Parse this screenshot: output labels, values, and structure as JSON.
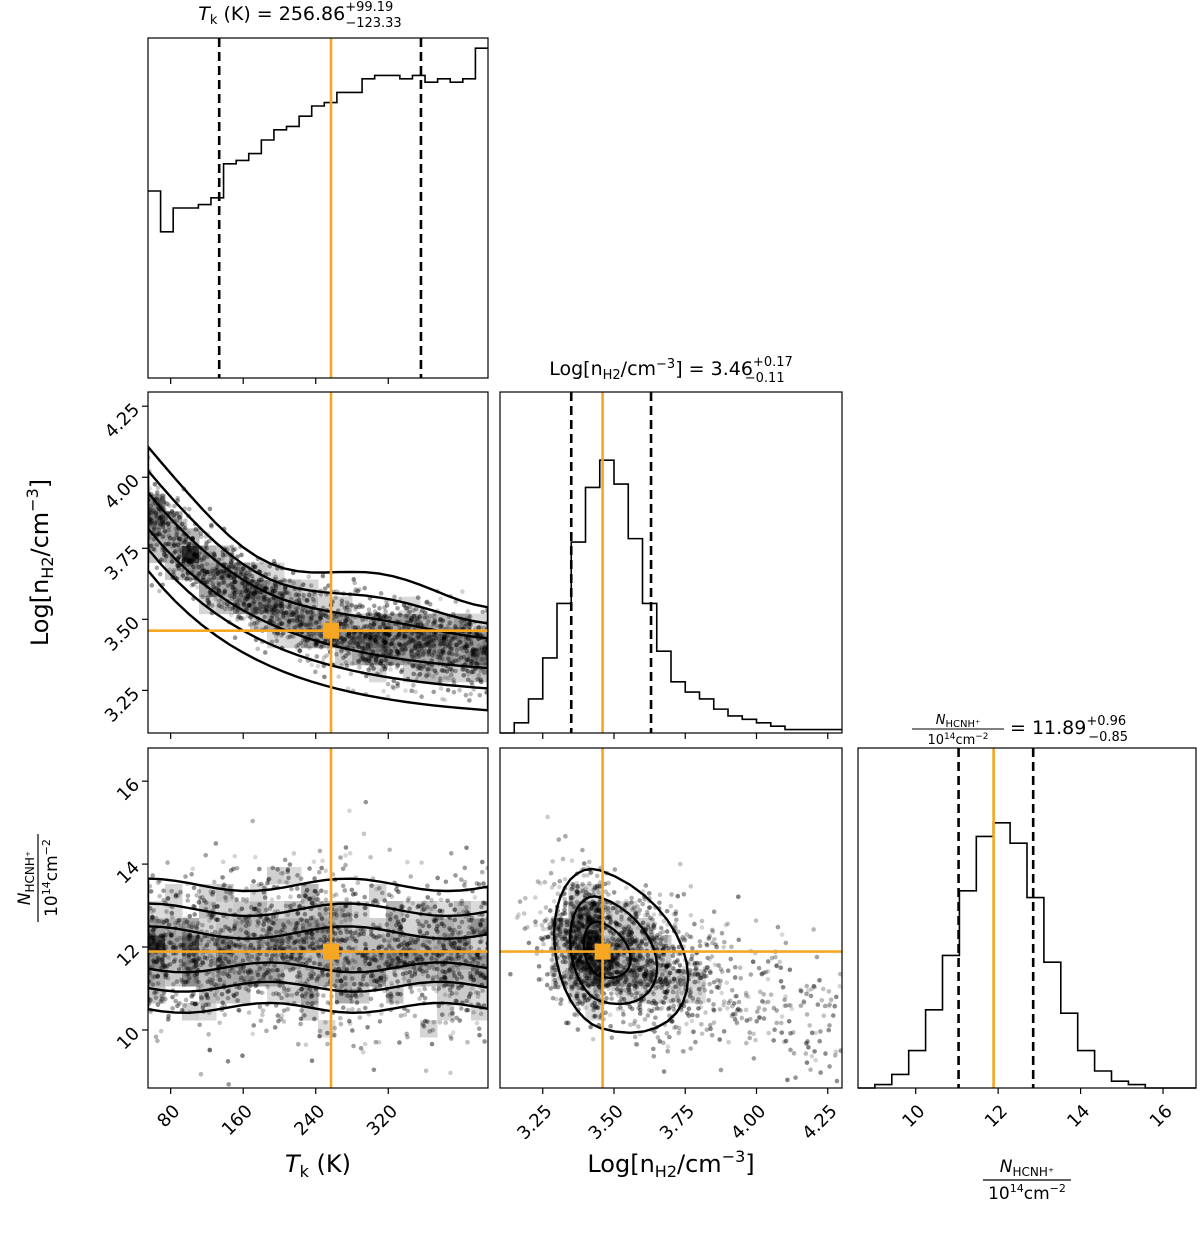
{
  "colors": {
    "truth": "#f5a623",
    "line": "#000000"
  },
  "params": [
    {
      "key": "tk",
      "axis_label": "T_k (K)",
      "title": "T_k (K) = 256.86 +99.19 −123.33",
      "title_parts": {
        "name": "T",
        "sub": "k",
        "unit": " (K) = 256.86",
        "sup": "+99.19",
        "inf": "−123.33"
      },
      "label_parts": {
        "name": "T",
        "sub": "k",
        "unit": " (K)"
      },
      "range": [
        55,
        430
      ],
      "ticks": [
        80,
        160,
        240,
        320
      ],
      "tick_labels": [
        "80",
        "160",
        "240",
        "320"
      ],
      "median": 256.86,
      "quantiles": [
        133.53,
        256.86,
        356.05
      ],
      "hist": [
        0.55,
        0.43,
        0.5,
        0.5,
        0.51,
        0.53,
        0.63,
        0.64,
        0.66,
        0.7,
        0.73,
        0.74,
        0.77,
        0.8,
        0.81,
        0.84,
        0.84,
        0.88,
        0.89,
        0.89,
        0.88,
        0.89,
        0.87,
        0.88,
        0.87,
        0.88,
        0.97
      ]
    },
    {
      "key": "nh2",
      "axis_label": "Log[n_H2/cm^-3]",
      "title": "Log[n_H2/cm^-3] = 3.46 +0.17 −0.11",
      "title_parts": {
        "name": "Log[n",
        "sub": "H2",
        "unit": "/cm",
        "exp": "−3",
        "tail": "] = 3.46",
        "sup": "+0.17",
        "inf": "−0.11"
      },
      "label_parts": {
        "name": "Log[n",
        "sub": "H2",
        "unit": "/cm",
        "exp": "−3",
        "tail": "]"
      },
      "range": [
        3.1,
        4.3
      ],
      "ticks": [
        3.25,
        3.5,
        3.75,
        4.0,
        4.25
      ],
      "tick_labels": [
        "3.25",
        "3.50",
        "3.75",
        "4.00",
        "4.25"
      ],
      "median": 3.46,
      "quantiles": [
        3.35,
        3.46,
        3.63
      ],
      "hist": [
        0.0,
        0.03,
        0.1,
        0.22,
        0.38,
        0.56,
        0.72,
        0.8,
        0.73,
        0.57,
        0.38,
        0.24,
        0.15,
        0.12,
        0.1,
        0.07,
        0.05,
        0.04,
        0.03,
        0.02,
        0.01,
        0.01,
        0.01,
        0.01
      ]
    },
    {
      "key": "nhcnh",
      "axis_label": "N_HCNH+ / 10^14 cm^-2",
      "title": "N_HCNH+ / 10^14 cm^-2 = 11.89 +0.96 −0.85",
      "title_parts": {
        "num_name": "N",
        "num_sub": "HCNH⁺",
        "den": "10",
        "den_exp": "14",
        "den_unit": "cm",
        "den_unit_exp": "−2",
        "value": " = 11.89",
        "sup": "+0.96",
        "inf": "−0.85"
      },
      "label_parts": {
        "num_name": "N",
        "num_sub": "HCNH⁺",
        "den": "10",
        "den_exp": "14",
        "den_unit": "cm",
        "den_unit_exp": "−2"
      },
      "range": [
        8.6,
        16.8
      ],
      "ticks": [
        10,
        12,
        14,
        16
      ],
      "tick_labels": [
        "10",
        "12",
        "14",
        "16"
      ],
      "median": 11.89,
      "quantiles": [
        11.04,
        11.89,
        12.85
      ],
      "hist": [
        0.0,
        0.01,
        0.04,
        0.11,
        0.23,
        0.39,
        0.58,
        0.74,
        0.78,
        0.72,
        0.56,
        0.37,
        0.22,
        0.11,
        0.05,
        0.02,
        0.01,
        0.0,
        0.0,
        0.0
      ]
    }
  ],
  "chart_data": {
    "type": "scatter",
    "subtype": "corner plot",
    "series": [
      {
        "name": "Tk vs log nH2",
        "x": [
          60,
          100,
          140,
          180,
          220,
          260,
          300,
          340,
          380,
          420
        ],
        "y": [
          3.87,
          3.78,
          3.7,
          3.62,
          3.55,
          3.48,
          3.43,
          3.4,
          3.38,
          3.36
        ]
      },
      {
        "name": "Tk vs N_HCNH+",
        "x": [
          60,
          100,
          140,
          180,
          220,
          260,
          300,
          340,
          380,
          420
        ],
        "y": [
          11.9,
          11.9,
          11.9,
          11.9,
          11.9,
          11.9,
          11.9,
          11.9,
          11.9,
          12.0
        ]
      },
      {
        "name": "log nH2 vs N_HCNH+",
        "x": [
          3.25,
          3.35,
          3.45,
          3.55,
          3.65,
          3.75,
          3.85
        ],
        "y": [
          12.6,
          12.2,
          11.9,
          11.6,
          11.3,
          11.1,
          11.0
        ]
      }
    ],
    "medians": {
      "tk": 256.86,
      "log_nh2": 3.46,
      "n_hcnh": 11.89
    },
    "title": "",
    "xlabel": "",
    "ylabel": ""
  }
}
